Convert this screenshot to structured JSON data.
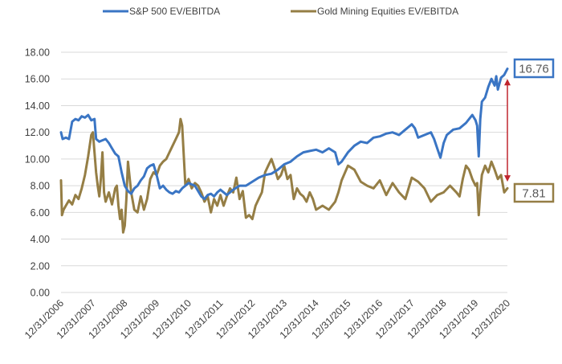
{
  "chart_data": {
    "type": "line",
    "title": "",
    "xlabel": "",
    "ylabel": "",
    "ylim": [
      0,
      18
    ],
    "yticks": [
      "0.00",
      "2.00",
      "4.00",
      "6.00",
      "8.00",
      "10.00",
      "12.00",
      "14.00",
      "16.00",
      "18.00"
    ],
    "xlim": [
      2007.0,
      2021.0
    ],
    "xticks": [
      "12/31/2006",
      "12/31/2007",
      "12/31/2008",
      "12/31/2009",
      "12/31/2010",
      "12/31/2011",
      "12/31/2012",
      "12/31/2013",
      "12/31/2014",
      "12/31/2015",
      "12/31/2016",
      "12/31/2017",
      "12/31/2018",
      "12/31/2019",
      "12/31/2020"
    ],
    "grid": "horizontal",
    "legend_position": "top",
    "series": [
      {
        "name": "S&P 500 EV/EBITDA",
        "color": "#3a75c4",
        "end_label": "16.76",
        "x": [
          2007.0,
          2007.05,
          2007.15,
          2007.25,
          2007.35,
          2007.45,
          2007.55,
          2007.65,
          2007.75,
          2007.85,
          2007.95,
          2008.05,
          2008.1,
          2008.2,
          2008.3,
          2008.4,
          2008.5,
          2008.6,
          2008.7,
          2008.8,
          2008.9,
          2009.0,
          2009.1,
          2009.2,
          2009.3,
          2009.4,
          2009.5,
          2009.6,
          2009.7,
          2009.8,
          2009.9,
          2010.0,
          2010.1,
          2010.2,
          2010.3,
          2010.4,
          2010.5,
          2010.6,
          2010.7,
          2010.8,
          2010.9,
          2011.0,
          2011.1,
          2011.2,
          2011.3,
          2011.4,
          2011.5,
          2011.6,
          2011.7,
          2011.8,
          2011.9,
          2012.0,
          2012.2,
          2012.4,
          2012.6,
          2012.8,
          2013.0,
          2013.2,
          2013.4,
          2013.6,
          2013.8,
          2014.0,
          2014.2,
          2014.4,
          2014.6,
          2014.8,
          2015.0,
          2015.2,
          2015.4,
          2015.6,
          2015.7,
          2015.8,
          2016.0,
          2016.2,
          2016.4,
          2016.6,
          2016.8,
          2017.0,
          2017.2,
          2017.4,
          2017.6,
          2017.8,
          2018.0,
          2018.1,
          2018.2,
          2018.4,
          2018.6,
          2018.7,
          2018.8,
          2018.9,
          2019.0,
          2019.1,
          2019.3,
          2019.5,
          2019.7,
          2019.9,
          2020.0,
          2020.05,
          2020.1,
          2020.15,
          2020.2,
          2020.3,
          2020.4,
          2020.5,
          2020.6,
          2020.65,
          2020.7,
          2020.8,
          2020.9,
          2021.0
        ],
        "values": [
          12.0,
          11.5,
          11.6,
          11.5,
          12.8,
          13.0,
          12.9,
          13.2,
          13.1,
          13.3,
          12.9,
          13.0,
          11.5,
          11.3,
          11.4,
          11.5,
          11.2,
          10.8,
          10.4,
          10.2,
          9.0,
          8.0,
          7.6,
          7.4,
          7.8,
          8.0,
          8.4,
          8.7,
          9.3,
          9.5,
          9.6,
          8.8,
          7.8,
          8.0,
          7.7,
          7.5,
          7.4,
          7.6,
          7.5,
          7.8,
          8.0,
          8.2,
          8.1,
          8.0,
          7.6,
          7.2,
          7.0,
          7.3,
          7.4,
          7.2,
          7.5,
          7.7,
          7.3,
          7.7,
          8.0,
          8.0,
          8.3,
          8.6,
          8.8,
          8.9,
          9.2,
          9.6,
          9.8,
          10.2,
          10.5,
          10.6,
          10.7,
          10.5,
          10.8,
          10.5,
          9.6,
          9.8,
          10.5,
          11.0,
          11.3,
          11.2,
          11.6,
          11.7,
          11.9,
          12.0,
          11.8,
          12.2,
          12.6,
          12.3,
          11.6,
          11.8,
          12.0,
          11.5,
          10.8,
          10.1,
          11.2,
          11.8,
          12.2,
          12.3,
          12.7,
          13.3,
          12.9,
          12.5,
          10.2,
          13.0,
          14.3,
          14.6,
          15.4,
          16.0,
          15.5,
          16.2,
          15.2,
          16.1,
          16.3,
          16.76
        ]
      },
      {
        "name": "Gold Mining Equities EV/EBITDA",
        "color": "#957e45",
        "end_label": "7.81",
        "x": [
          2007.0,
          2007.03,
          2007.08,
          2007.15,
          2007.25,
          2007.35,
          2007.45,
          2007.55,
          2007.65,
          2007.75,
          2007.85,
          2007.95,
          2008.0,
          2008.05,
          2008.1,
          2008.15,
          2008.2,
          2008.25,
          2008.3,
          2008.35,
          2008.4,
          2008.5,
          2008.6,
          2008.7,
          2008.75,
          2008.8,
          2008.85,
          2008.9,
          2008.95,
          2009.0,
          2009.05,
          2009.1,
          2009.2,
          2009.3,
          2009.4,
          2009.5,
          2009.6,
          2009.7,
          2009.8,
          2009.9,
          2010.0,
          2010.1,
          2010.2,
          2010.3,
          2010.4,
          2010.5,
          2010.6,
          2010.7,
          2010.75,
          2010.8,
          2010.9,
          2011.0,
          2011.1,
          2011.2,
          2011.3,
          2011.4,
          2011.5,
          2011.6,
          2011.7,
          2011.8,
          2011.9,
          2012.0,
          2012.1,
          2012.2,
          2012.3,
          2012.4,
          2012.5,
          2012.6,
          2012.7,
          2012.8,
          2012.9,
          2013.0,
          2013.1,
          2013.2,
          2013.3,
          2013.4,
          2013.5,
          2013.6,
          2013.7,
          2013.8,
          2013.9,
          2014.0,
          2014.1,
          2014.2,
          2014.3,
          2014.4,
          2014.5,
          2014.6,
          2014.7,
          2014.8,
          2014.9,
          2015.0,
          2015.2,
          2015.4,
          2015.6,
          2015.7,
          2015.8,
          2016.0,
          2016.2,
          2016.4,
          2016.6,
          2016.8,
          2017.0,
          2017.2,
          2017.4,
          2017.6,
          2017.8,
          2018.0,
          2018.2,
          2018.4,
          2018.6,
          2018.8,
          2019.0,
          2019.2,
          2019.4,
          2019.5,
          2019.6,
          2019.7,
          2019.8,
          2019.9,
          2020.0,
          2020.05,
          2020.1,
          2020.15,
          2020.2,
          2020.3,
          2020.4,
          2020.5,
          2020.6,
          2020.7,
          2020.8,
          2020.9,
          2021.0
        ],
        "values": [
          8.4,
          5.8,
          6.2,
          6.5,
          6.9,
          6.6,
          7.3,
          7.0,
          7.8,
          8.8,
          10.2,
          11.8,
          12.0,
          10.5,
          9.0,
          8.0,
          7.2,
          8.5,
          10.5,
          7.5,
          6.8,
          7.5,
          6.6,
          7.8,
          8.0,
          6.5,
          5.5,
          6.2,
          4.5,
          5.0,
          7.0,
          9.8,
          7.5,
          6.2,
          6.0,
          7.2,
          6.2,
          7.0,
          8.5,
          9.0,
          8.8,
          9.5,
          9.8,
          10.0,
          10.5,
          11.0,
          11.5,
          12.0,
          13.0,
          12.5,
          8.0,
          8.5,
          7.8,
          8.2,
          8.0,
          7.5,
          6.8,
          7.2,
          6.0,
          7.0,
          6.5,
          7.3,
          6.5,
          7.2,
          7.8,
          7.5,
          8.6,
          7.0,
          7.6,
          5.6,
          5.8,
          5.5,
          6.5,
          7.0,
          7.5,
          9.0,
          9.5,
          10.0,
          9.3,
          8.5,
          8.8,
          9.5,
          8.5,
          8.8,
          7.0,
          7.8,
          7.4,
          7.2,
          6.8,
          7.5,
          7.0,
          6.2,
          6.5,
          6.2,
          6.8,
          7.5,
          8.4,
          9.5,
          9.2,
          8.3,
          8.0,
          7.8,
          8.4,
          7.3,
          8.2,
          7.5,
          7.0,
          8.6,
          8.3,
          7.8,
          6.8,
          7.3,
          7.5,
          8.0,
          7.5,
          7.2,
          8.5,
          9.5,
          9.2,
          8.5,
          8.0,
          8.2,
          5.8,
          7.5,
          8.8,
          9.5,
          9.0,
          9.8,
          9.2,
          8.5,
          8.8,
          7.5,
          7.81
        ]
      }
    ],
    "annotations": [
      {
        "type": "double-arrow",
        "color": "#c0252d",
        "from_value": 16.0,
        "to_value": 8.3,
        "meaning": "valuation gap between series"
      }
    ]
  }
}
